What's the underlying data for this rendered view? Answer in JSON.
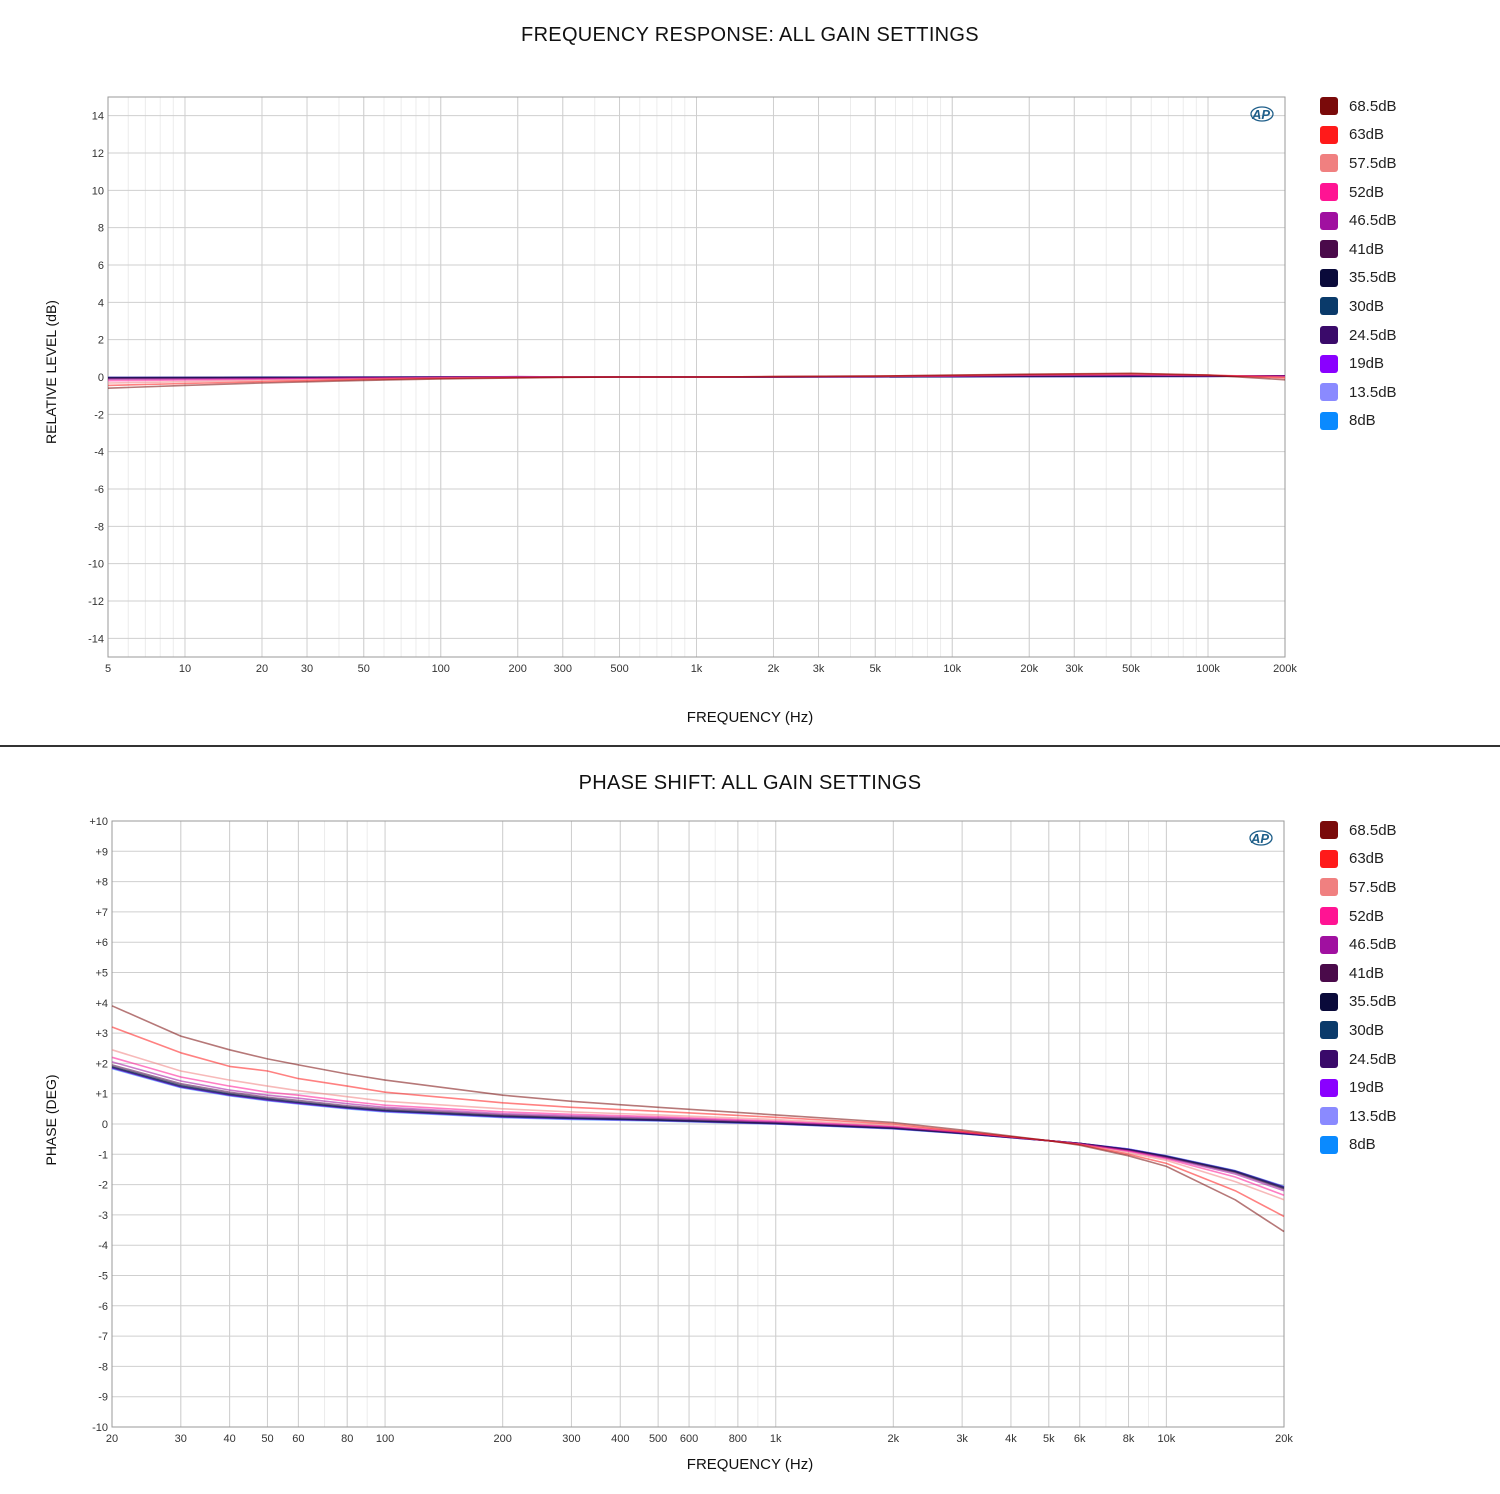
{
  "legend_colors": [
    "#7a0a0a",
    "#ff1a1a",
    "#f08080",
    "#ff1493",
    "#a010a0",
    "#4a0a4a",
    "#0a0a3a",
    "#0a3a6a",
    "#3a0a6a",
    "#8a00ff",
    "#8a8aff",
    "#0a8aff"
  ],
  "chart_data": [
    {
      "type": "line",
      "title": "FREQUENCY RESPONSE: ALL GAIN SETTINGS",
      "xlabel": "FREQUENCY (Hz)",
      "ylabel": "RELATIVE LEVEL (dB)",
      "xscale": "log",
      "xlim": [
        5,
        200000
      ],
      "ylim": [
        -15,
        15
      ],
      "x_ticks": [
        5,
        10,
        20,
        30,
        50,
        100,
        200,
        300,
        500,
        1000,
        2000,
        3000,
        5000,
        10000,
        20000,
        30000,
        50000,
        100000,
        200000
      ],
      "x_tick_labels": [
        "5",
        "10",
        "20",
        "30",
        "50",
        "100",
        "200",
        "300",
        "500",
        "1k",
        "2k",
        "3k",
        "5k",
        "10k",
        "20k",
        "30k",
        "50k",
        "100k",
        "200k"
      ],
      "y_ticks": [
        14,
        12,
        10,
        8,
        6,
        4,
        2,
        0,
        -2,
        -4,
        -6,
        -8,
        -10,
        -12,
        -14
      ],
      "y_tick_labels": [
        "14",
        "12",
        "10",
        "8",
        "6",
        "4",
        "2",
        "0",
        "-2",
        "-4",
        "-6",
        "-8",
        "-10",
        "-12",
        "-14"
      ],
      "grid": true,
      "legend_position": "right",
      "x": [
        5,
        10,
        20,
        50,
        100,
        200,
        300,
        500,
        1000,
        2000,
        5000,
        10000,
        20000,
        50000,
        100000,
        200000
      ],
      "series": [
        {
          "name": "68.5dB",
          "values": [
            -0.6,
            -0.45,
            -0.32,
            -0.18,
            -0.1,
            -0.05,
            -0.02,
            0.0,
            0.0,
            0.02,
            0.05,
            0.1,
            0.15,
            0.2,
            0.1,
            -0.15
          ]
        },
        {
          "name": "63dB",
          "values": [
            -0.45,
            -0.35,
            -0.25,
            -0.14,
            -0.08,
            -0.04,
            -0.01,
            0.0,
            0.0,
            0.02,
            0.05,
            0.09,
            0.14,
            0.18,
            0.1,
            -0.05
          ]
        },
        {
          "name": "57.5dB",
          "values": [
            -0.32,
            -0.25,
            -0.18,
            -0.1,
            -0.05,
            -0.02,
            0.0,
            0.0,
            0.0,
            0.02,
            0.04,
            0.08,
            0.12,
            0.15,
            0.1,
            0.0
          ]
        },
        {
          "name": "52dB",
          "values": [
            -0.2,
            -0.16,
            -0.12,
            -0.07,
            -0.03,
            0.0,
            0.0,
            0.0,
            0.0,
            0.01,
            0.03,
            0.06,
            0.1,
            0.12,
            0.08,
            0.03
          ]
        },
        {
          "name": "46.5dB",
          "values": [
            -0.12,
            -0.1,
            -0.08,
            -0.05,
            -0.02,
            0.02,
            0.0,
            0.0,
            0.0,
            0.01,
            0.03,
            0.05,
            0.08,
            0.1,
            0.07,
            0.05
          ]
        },
        {
          "name": "41dB",
          "values": [
            -0.08,
            -0.07,
            -0.05,
            -0.03,
            -0.01,
            0.0,
            0.0,
            0.0,
            0.0,
            0.01,
            0.02,
            0.04,
            0.06,
            0.08,
            0.06,
            0.06
          ]
        },
        {
          "name": "35.5dB",
          "values": [
            -0.05,
            -0.04,
            -0.03,
            -0.02,
            -0.01,
            0.0,
            0.0,
            0.0,
            0.0,
            0.0,
            0.02,
            0.03,
            0.05,
            0.06,
            0.05,
            0.06
          ]
        },
        {
          "name": "30dB",
          "values": [
            -0.04,
            -0.03,
            -0.02,
            -0.02,
            -0.01,
            0.0,
            0.0,
            0.0,
            0.0,
            0.0,
            0.01,
            0.02,
            0.04,
            0.05,
            0.05,
            0.06
          ]
        },
        {
          "name": "24.5dB",
          "values": [
            -0.03,
            -0.03,
            -0.02,
            -0.01,
            0.0,
            0.0,
            0.0,
            0.0,
            0.0,
            0.0,
            0.01,
            0.02,
            0.03,
            0.04,
            0.04,
            0.06
          ]
        },
        {
          "name": "19dB",
          "values": [
            -0.03,
            -0.02,
            -0.02,
            -0.01,
            0.0,
            0.0,
            0.0,
            0.0,
            0.0,
            0.0,
            0.01,
            0.02,
            0.03,
            0.04,
            0.04,
            0.06
          ]
        },
        {
          "name": "13.5dB",
          "values": [
            -0.02,
            -0.02,
            -0.01,
            -0.01,
            0.0,
            0.0,
            0.0,
            0.0,
            0.0,
            0.0,
            0.01,
            0.01,
            0.02,
            0.03,
            0.04,
            0.06
          ]
        },
        {
          "name": "8dB",
          "values": [
            -0.02,
            -0.02,
            -0.01,
            -0.01,
            0.0,
            0.0,
            0.0,
            0.0,
            0.0,
            0.0,
            0.01,
            0.01,
            0.02,
            0.03,
            0.04,
            0.06
          ]
        }
      ]
    },
    {
      "type": "line",
      "title": "PHASE SHIFT: ALL GAIN SETTINGS",
      "xlabel": "FREQUENCY (Hz)",
      "ylabel": "PHASE (DEG)",
      "xscale": "log",
      "xlim": [
        20,
        20000
      ],
      "ylim": [
        -10,
        10
      ],
      "x_ticks": [
        20,
        30,
        40,
        50,
        60,
        80,
        100,
        200,
        300,
        400,
        500,
        600,
        800,
        1000,
        2000,
        3000,
        4000,
        5000,
        6000,
        8000,
        10000,
        20000
      ],
      "x_tick_labels": [
        "20",
        "30",
        "40",
        "50",
        "60",
        "80",
        "100",
        "200",
        "300",
        "400",
        "500",
        "600",
        "800",
        "1k",
        "2k",
        "3k",
        "4k",
        "5k",
        "6k",
        "8k",
        "10k",
        "20k"
      ],
      "y_ticks": [
        10,
        9,
        8,
        7,
        6,
        5,
        4,
        3,
        2,
        1,
        0,
        -1,
        -2,
        -3,
        -4,
        -5,
        -6,
        -7,
        -8,
        -9,
        -10
      ],
      "y_tick_labels": [
        "+10",
        "+9",
        "+8",
        "+7",
        "+6",
        "+5",
        "+4",
        "+3",
        "+2",
        "+1",
        "0",
        "-1",
        "-2",
        "-3",
        "-4",
        "-5",
        "-6",
        "-7",
        "-8",
        "-9",
        "-10"
      ],
      "grid": true,
      "legend_position": "right",
      "x": [
        20,
        30,
        40,
        50,
        60,
        80,
        100,
        200,
        300,
        500,
        1000,
        2000,
        3000,
        4000,
        5000,
        6000,
        8000,
        10000,
        15000,
        20000
      ],
      "series": [
        {
          "name": "68.5dB",
          "values": [
            3.9,
            2.9,
            2.45,
            2.15,
            1.95,
            1.65,
            1.45,
            0.95,
            0.75,
            0.55,
            0.3,
            0.05,
            -0.2,
            -0.4,
            -0.55,
            -0.7,
            -1.05,
            -1.4,
            -2.5,
            -3.55
          ]
        },
        {
          "name": "63dB",
          "values": [
            3.2,
            2.35,
            1.9,
            1.75,
            1.5,
            1.25,
            1.05,
            0.7,
            0.55,
            0.42,
            0.22,
            0.0,
            -0.25,
            -0.42,
            -0.55,
            -0.68,
            -1.0,
            -1.3,
            -2.2,
            -3.05
          ]
        },
        {
          "name": "57.5dB",
          "values": [
            2.45,
            1.75,
            1.45,
            1.25,
            1.1,
            0.9,
            0.75,
            0.5,
            0.4,
            0.3,
            0.15,
            -0.05,
            -0.25,
            -0.42,
            -0.55,
            -0.67,
            -0.95,
            -1.2,
            -1.9,
            -2.5
          ]
        },
        {
          "name": "52dB",
          "values": [
            2.2,
            1.55,
            1.25,
            1.05,
            0.95,
            0.75,
            0.62,
            0.4,
            0.32,
            0.24,
            0.1,
            -0.08,
            -0.27,
            -0.43,
            -0.55,
            -0.66,
            -0.9,
            -1.15,
            -1.75,
            -2.35
          ]
        },
        {
          "name": "46.5dB",
          "values": [
            2.05,
            1.42,
            1.12,
            0.95,
            0.85,
            0.67,
            0.55,
            0.34,
            0.27,
            0.2,
            0.07,
            -0.1,
            -0.28,
            -0.43,
            -0.55,
            -0.65,
            -0.88,
            -1.12,
            -1.65,
            -2.2
          ]
        },
        {
          "name": "41dB",
          "values": [
            1.95,
            1.33,
            1.05,
            0.88,
            0.78,
            0.6,
            0.5,
            0.3,
            0.23,
            0.17,
            0.05,
            -0.12,
            -0.29,
            -0.44,
            -0.55,
            -0.64,
            -0.86,
            -1.1,
            -1.6,
            -2.15
          ]
        },
        {
          "name": "35.5dB",
          "values": [
            1.9,
            1.28,
            1.0,
            0.84,
            0.73,
            0.56,
            0.46,
            0.27,
            0.2,
            0.14,
            0.03,
            -0.13,
            -0.3,
            -0.44,
            -0.55,
            -0.64,
            -0.85,
            -1.08,
            -1.58,
            -2.12
          ]
        },
        {
          "name": "30dB",
          "values": [
            1.88,
            1.25,
            0.98,
            0.82,
            0.71,
            0.54,
            0.44,
            0.25,
            0.19,
            0.13,
            0.02,
            -0.14,
            -0.31,
            -0.44,
            -0.55,
            -0.64,
            -0.84,
            -1.07,
            -1.56,
            -2.1
          ]
        },
        {
          "name": "24.5dB",
          "values": [
            1.86,
            1.23,
            0.96,
            0.8,
            0.69,
            0.53,
            0.43,
            0.24,
            0.18,
            0.12,
            0.01,
            -0.15,
            -0.31,
            -0.45,
            -0.55,
            -0.64,
            -0.84,
            -1.06,
            -1.55,
            -2.08
          ]
        },
        {
          "name": "19dB",
          "values": [
            1.85,
            1.22,
            0.95,
            0.79,
            0.68,
            0.52,
            0.42,
            0.23,
            0.17,
            0.12,
            0.01,
            -0.15,
            -0.31,
            -0.45,
            -0.55,
            -0.64,
            -0.83,
            -1.06,
            -1.55,
            -2.08
          ]
        },
        {
          "name": "13.5dB",
          "values": [
            1.84,
            1.21,
            0.94,
            0.78,
            0.67,
            0.51,
            0.41,
            0.22,
            0.16,
            0.11,
            0.0,
            -0.16,
            -0.32,
            -0.45,
            -0.55,
            -0.64,
            -0.83,
            -1.05,
            -1.54,
            -2.07
          ]
        },
        {
          "name": "8dB",
          "values": [
            1.83,
            1.2,
            0.93,
            0.77,
            0.66,
            0.5,
            0.4,
            0.21,
            0.15,
            0.1,
            0.0,
            -0.16,
            -0.32,
            -0.45,
            -0.55,
            -0.64,
            -0.83,
            -1.05,
            -1.54,
            -2.06
          ]
        }
      ]
    }
  ]
}
